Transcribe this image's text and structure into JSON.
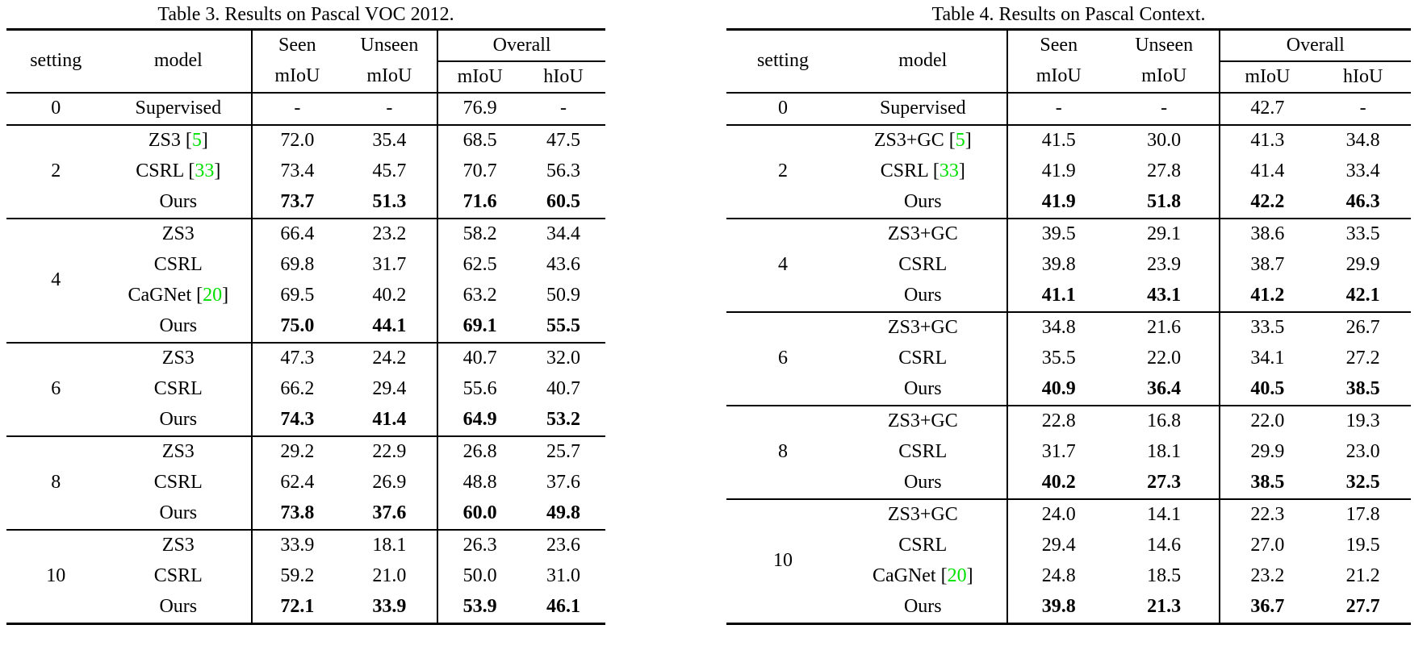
{
  "page": {
    "background": "#ffffff",
    "text_color": "#000000"
  },
  "colors": {
    "citation_green": "#00E000"
  },
  "tables": [
    {
      "caption": "Table 3. Results on Pascal VOC 2012.",
      "header": {
        "setting": "setting",
        "model": "model",
        "seen_top": "Seen",
        "unseen_top": "Unseen",
        "overall_top": "Overall",
        "seen_sub": "mIoU",
        "unseen_sub": "mIoU",
        "overall_miou": "mIoU",
        "overall_hiou": "hIoU"
      },
      "groups": [
        {
          "setting": "0",
          "rows": [
            {
              "model": "Supervised",
              "values": [
                "-",
                "-",
                "76.9",
                "-"
              ]
            }
          ]
        },
        {
          "setting": "2",
          "rows": [
            {
              "model": "ZS3",
              "cite": "5",
              "values": [
                "72.0",
                "35.4",
                "68.5",
                "47.5"
              ]
            },
            {
              "model": "CSRL",
              "cite": "33",
              "values": [
                "73.4",
                "45.7",
                "70.7",
                "56.3"
              ]
            },
            {
              "model": "Ours",
              "bold": true,
              "values": [
                "73.7",
                "51.3",
                "71.6",
                "60.5"
              ]
            }
          ]
        },
        {
          "setting": "4",
          "rows": [
            {
              "model": "ZS3",
              "values": [
                "66.4",
                "23.2",
                "58.2",
                "34.4"
              ]
            },
            {
              "model": "CSRL",
              "values": [
                "69.8",
                "31.7",
                "62.5",
                "43.6"
              ]
            },
            {
              "model": "CaGNet",
              "cite": "20",
              "values": [
                "69.5",
                "40.2",
                "63.2",
                "50.9"
              ]
            },
            {
              "model": "Ours",
              "bold": true,
              "values": [
                "75.0",
                "44.1",
                "69.1",
                "55.5"
              ]
            }
          ]
        },
        {
          "setting": "6",
          "rows": [
            {
              "model": "ZS3",
              "values": [
                "47.3",
                "24.2",
                "40.7",
                "32.0"
              ]
            },
            {
              "model": "CSRL",
              "values": [
                "66.2",
                "29.4",
                "55.6",
                "40.7"
              ]
            },
            {
              "model": "Ours",
              "bold": true,
              "values": [
                "74.3",
                "41.4",
                "64.9",
                "53.2"
              ]
            }
          ]
        },
        {
          "setting": "8",
          "rows": [
            {
              "model": "ZS3",
              "values": [
                "29.2",
                "22.9",
                "26.8",
                "25.7"
              ]
            },
            {
              "model": "CSRL",
              "values": [
                "62.4",
                "26.9",
                "48.8",
                "37.6"
              ]
            },
            {
              "model": "Ours",
              "bold": true,
              "values": [
                "73.8",
                "37.6",
                "60.0",
                "49.8"
              ]
            }
          ]
        },
        {
          "setting": "10",
          "rows": [
            {
              "model": "ZS3",
              "values": [
                "33.9",
                "18.1",
                "26.3",
                "23.6"
              ]
            },
            {
              "model": "CSRL",
              "values": [
                "59.2",
                "21.0",
                "50.0",
                "31.0"
              ]
            },
            {
              "model": "Ours",
              "bold": true,
              "values": [
                "72.1",
                "33.9",
                "53.9",
                "46.1"
              ]
            }
          ]
        }
      ]
    },
    {
      "caption": "Table 4. Results on Pascal Context.",
      "header": {
        "setting": "setting",
        "model": "model",
        "seen_top": "Seen",
        "unseen_top": "Unseen",
        "overall_top": "Overall",
        "seen_sub": "mIoU",
        "unseen_sub": "mIoU",
        "overall_miou": "mIoU",
        "overall_hiou": "hIoU"
      },
      "groups": [
        {
          "setting": "0",
          "rows": [
            {
              "model": "Supervised",
              "values": [
                "-",
                "-",
                "42.7",
                "-"
              ]
            }
          ]
        },
        {
          "setting": "2",
          "rows": [
            {
              "model": "ZS3+GC",
              "cite": "5",
              "values": [
                "41.5",
                "30.0",
                "41.3",
                "34.8"
              ]
            },
            {
              "model": "CSRL",
              "cite": "33",
              "values": [
                "41.9",
                "27.8",
                "41.4",
                "33.4"
              ]
            },
            {
              "model": "Ours",
              "bold": true,
              "values": [
                "41.9",
                "51.8",
                "42.2",
                "46.3"
              ]
            }
          ]
        },
        {
          "setting": "4",
          "rows": [
            {
              "model": "ZS3+GC",
              "values": [
                "39.5",
                "29.1",
                "38.6",
                "33.5"
              ]
            },
            {
              "model": "CSRL",
              "values": [
                "39.8",
                "23.9",
                "38.7",
                "29.9"
              ]
            },
            {
              "model": "Ours",
              "bold": true,
              "values": [
                "41.1",
                "43.1",
                "41.2",
                "42.1"
              ]
            }
          ]
        },
        {
          "setting": "6",
          "rows": [
            {
              "model": "ZS3+GC",
              "values": [
                "34.8",
                "21.6",
                "33.5",
                "26.7"
              ]
            },
            {
              "model": "CSRL",
              "values": [
                "35.5",
                "22.0",
                "34.1",
                "27.2"
              ]
            },
            {
              "model": "Ours",
              "bold": true,
              "values": [
                "40.9",
                "36.4",
                "40.5",
                "38.5"
              ]
            }
          ]
        },
        {
          "setting": "8",
          "rows": [
            {
              "model": "ZS3+GC",
              "values": [
                "22.8",
                "16.8",
                "22.0",
                "19.3"
              ]
            },
            {
              "model": "CSRL",
              "values": [
                "31.7",
                "18.1",
                "29.9",
                "23.0"
              ]
            },
            {
              "model": "Ours",
              "bold": true,
              "values": [
                "40.2",
                "27.3",
                "38.5",
                "32.5"
              ]
            }
          ]
        },
        {
          "setting": "10",
          "rows": [
            {
              "model": "ZS3+GC",
              "values": [
                "24.0",
                "14.1",
                "22.3",
                "17.8"
              ]
            },
            {
              "model": "CSRL",
              "values": [
                "29.4",
                "14.6",
                "27.0",
                "19.5"
              ]
            },
            {
              "model": "CaGNet",
              "cite": "20",
              "values": [
                "24.8",
                "18.5",
                "23.2",
                "21.2"
              ]
            },
            {
              "model": "Ours",
              "bold": true,
              "values": [
                "39.8",
                "21.3",
                "36.7",
                "27.7"
              ]
            }
          ]
        }
      ]
    }
  ]
}
